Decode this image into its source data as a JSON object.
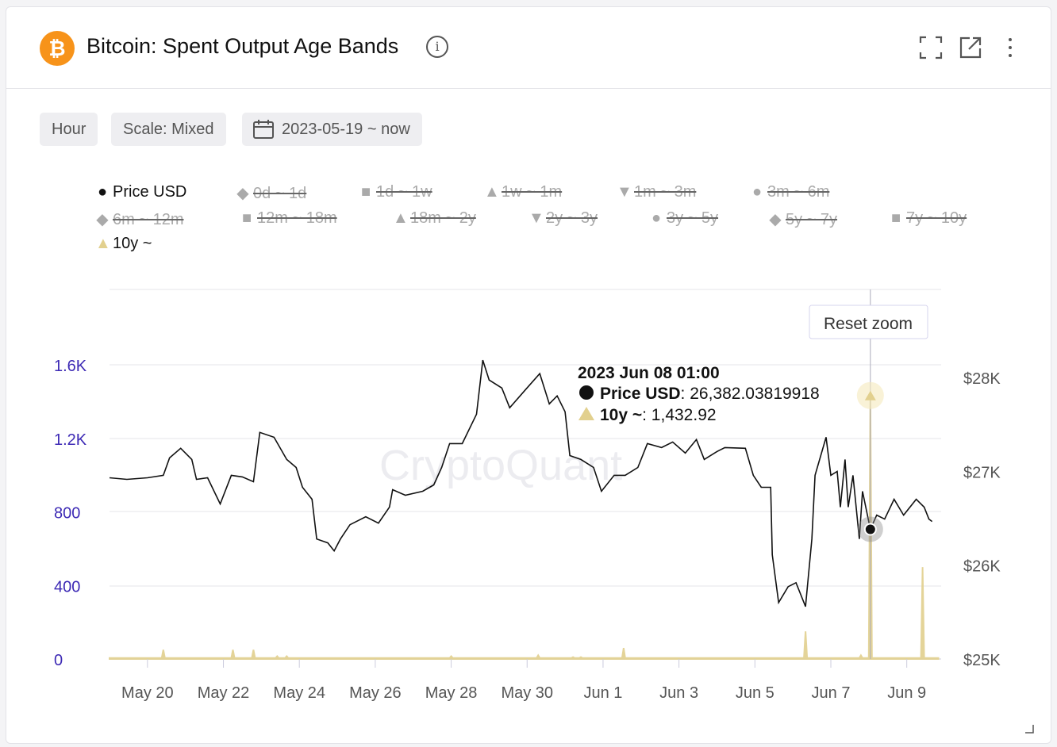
{
  "header": {
    "title": "Bitcoin: Spent Output Age Bands",
    "logo": "₿",
    "info": "i"
  },
  "controls": {
    "interval": "Hour",
    "scale": "Scale: Mixed",
    "date_range": "2023-05-19 ~ now"
  },
  "reset_zoom": "Reset zoom",
  "watermark": "CryptoQuant",
  "legend": [
    {
      "label": "Price USD",
      "marker": "●",
      "active": true
    },
    {
      "label": "0d ~ 1d",
      "marker": "◆",
      "active": false
    },
    {
      "label": "1d ~ 1w",
      "marker": "■",
      "active": false
    },
    {
      "label": "1w ~ 1m",
      "marker": "▲",
      "active": false
    },
    {
      "label": "1m ~ 3m",
      "marker": "▼",
      "active": false
    },
    {
      "label": "3m ~ 6m",
      "marker": "●",
      "active": false
    },
    {
      "label": "6m ~ 12m",
      "marker": "◆",
      "active": false
    },
    {
      "label": "12m ~ 18m",
      "marker": "■",
      "active": false
    },
    {
      "label": "18m ~ 2y",
      "marker": "▲",
      "active": false
    },
    {
      "label": "2y ~ 3y",
      "marker": "▼",
      "active": false
    },
    {
      "label": "3y ~ 5y",
      "marker": "●",
      "active": false
    },
    {
      "label": "5y ~ 7y",
      "marker": "◆",
      "active": false
    },
    {
      "label": "7y ~ 10y",
      "marker": "■",
      "active": false
    },
    {
      "label": "10y ~",
      "marker": "▲",
      "active": true
    }
  ],
  "tooltip": {
    "date": "2023 Jun 08 01:00",
    "price_label": "Price USD",
    "price_value": ": 26,382.03819918",
    "band_label": "10y ~",
    "band_value": ": 1,432.92"
  },
  "chart_data": {
    "type": "line",
    "title": "Bitcoin: Spent Output Age Bands",
    "x_unit": "hours since 2023-05-19 00:00",
    "xlim": [
      0,
      524
    ],
    "x_ticks": [
      {
        "h": 24,
        "label": "May 20"
      },
      {
        "h": 72,
        "label": "May 22"
      },
      {
        "h": 120,
        "label": "May 24"
      },
      {
        "h": 168,
        "label": "May 26"
      },
      {
        "h": 216,
        "label": "May 28"
      },
      {
        "h": 264,
        "label": "May 30"
      },
      {
        "h": 312,
        "label": "Jun 1"
      },
      {
        "h": 360,
        "label": "Jun 3"
      },
      {
        "h": 408,
        "label": "Jun 5"
      },
      {
        "h": 456,
        "label": "Jun 7"
      },
      {
        "h": 504,
        "label": "Jun 9"
      }
    ],
    "y_left": {
      "ticks": [
        0,
        400,
        800,
        1200,
        1600
      ],
      "labels": [
        "0",
        "400",
        "800",
        "1.2K",
        "1.6K"
      ],
      "ylim": [
        0,
        1600
      ]
    },
    "y_right": {
      "ticks": [
        25000,
        26000,
        27000,
        28000
      ],
      "labels": [
        "$25K",
        "$26K",
        "$27K",
        "$28K"
      ],
      "ylim": [
        25000,
        28000
      ]
    },
    "colors": {
      "price": "#111111",
      "band": "#e2d08e",
      "left_axis": "#3d2ab5"
    },
    "series": [
      {
        "name": "Price USD",
        "axis": "right",
        "points": [
          [
            0,
            26931
          ],
          [
            11,
            26914
          ],
          [
            24,
            26931
          ],
          [
            34,
            26957
          ],
          [
            38,
            27143
          ],
          [
            45,
            27245
          ],
          [
            52,
            27126
          ],
          [
            55,
            26914
          ],
          [
            62,
            26931
          ],
          [
            70,
            26652
          ],
          [
            77,
            26957
          ],
          [
            84,
            26940
          ],
          [
            91,
            26889
          ],
          [
            95,
            27414
          ],
          [
            104,
            27363
          ],
          [
            112,
            27126
          ],
          [
            118,
            27041
          ],
          [
            122,
            26830
          ],
          [
            128,
            26702
          ],
          [
            131,
            26279
          ],
          [
            138,
            26237
          ],
          [
            142,
            26152
          ],
          [
            146,
            26279
          ],
          [
            152,
            26431
          ],
          [
            162,
            26516
          ],
          [
            170,
            26448
          ],
          [
            177,
            26618
          ],
          [
            179,
            26804
          ],
          [
            187,
            26745
          ],
          [
            198,
            26787
          ],
          [
            205,
            26855
          ],
          [
            210,
            27041
          ],
          [
            215,
            27295
          ],
          [
            223,
            27295
          ],
          [
            232,
            27609
          ],
          [
            236,
            28185
          ],
          [
            240,
            27973
          ],
          [
            248,
            27888
          ],
          [
            253,
            27677
          ],
          [
            263,
            27871
          ],
          [
            272,
            28041
          ],
          [
            278,
            27719
          ],
          [
            283,
            27804
          ],
          [
            288,
            27634
          ],
          [
            291,
            27168
          ],
          [
            298,
            27126
          ],
          [
            306,
            27041
          ],
          [
            311,
            26787
          ],
          [
            319,
            26957
          ],
          [
            326,
            26957
          ],
          [
            334,
            27041
          ],
          [
            340,
            27295
          ],
          [
            349,
            27253
          ],
          [
            356,
            27312
          ],
          [
            364,
            27194
          ],
          [
            371,
            27338
          ],
          [
            376,
            27126
          ],
          [
            384,
            27211
          ],
          [
            389,
            27253
          ],
          [
            402,
            27245
          ],
          [
            407,
            26957
          ],
          [
            412,
            26830
          ],
          [
            418,
            26830
          ],
          [
            419,
            26110
          ],
          [
            423,
            25601
          ],
          [
            429,
            25771
          ],
          [
            434,
            25813
          ],
          [
            440,
            25559
          ],
          [
            444,
            26279
          ],
          [
            446,
            26957
          ],
          [
            453,
            27363
          ],
          [
            456,
            26957
          ],
          [
            460,
            26999
          ],
          [
            462,
            26618
          ],
          [
            465,
            27126
          ],
          [
            467,
            26618
          ],
          [
            470,
            26957
          ],
          [
            474,
            26279
          ],
          [
            476,
            26787
          ],
          [
            481,
            26382
          ],
          [
            485,
            26533
          ],
          [
            490,
            26491
          ],
          [
            496,
            26702
          ],
          [
            502,
            26533
          ],
          [
            510,
            26702
          ],
          [
            515,
            26618
          ],
          [
            518,
            26491
          ],
          [
            520,
            26465
          ]
        ]
      },
      {
        "name": "10y ~",
        "axis": "left",
        "points": [
          [
            0,
            5
          ],
          [
            33,
            5
          ],
          [
            34,
            50
          ],
          [
            35,
            5
          ],
          [
            77,
            5
          ],
          [
            78,
            50
          ],
          [
            79,
            5
          ],
          [
            90,
            5
          ],
          [
            91,
            50
          ],
          [
            92,
            5
          ],
          [
            105,
            5
          ],
          [
            106,
            15
          ],
          [
            107,
            5
          ],
          [
            111,
            5
          ],
          [
            112,
            15
          ],
          [
            113,
            5
          ],
          [
            215,
            5
          ],
          [
            216,
            15
          ],
          [
            217,
            5
          ],
          [
            270,
            5
          ],
          [
            271,
            20
          ],
          [
            272,
            5
          ],
          [
            292,
            5
          ],
          [
            293,
            10
          ],
          [
            294,
            5
          ],
          [
            297,
            5
          ],
          [
            298,
            10
          ],
          [
            299,
            5
          ],
          [
            324,
            5
          ],
          [
            325,
            60
          ],
          [
            326,
            5
          ],
          [
            439,
            5
          ],
          [
            440,
            150
          ],
          [
            441,
            5
          ],
          [
            474,
            5
          ],
          [
            475,
            20
          ],
          [
            476,
            5
          ],
          [
            480,
            5
          ],
          [
            481,
            1432.92
          ],
          [
            482,
            5
          ],
          [
            513,
            5
          ],
          [
            514,
            500
          ],
          [
            515,
            5
          ],
          [
            524,
            5
          ]
        ]
      }
    ]
  }
}
